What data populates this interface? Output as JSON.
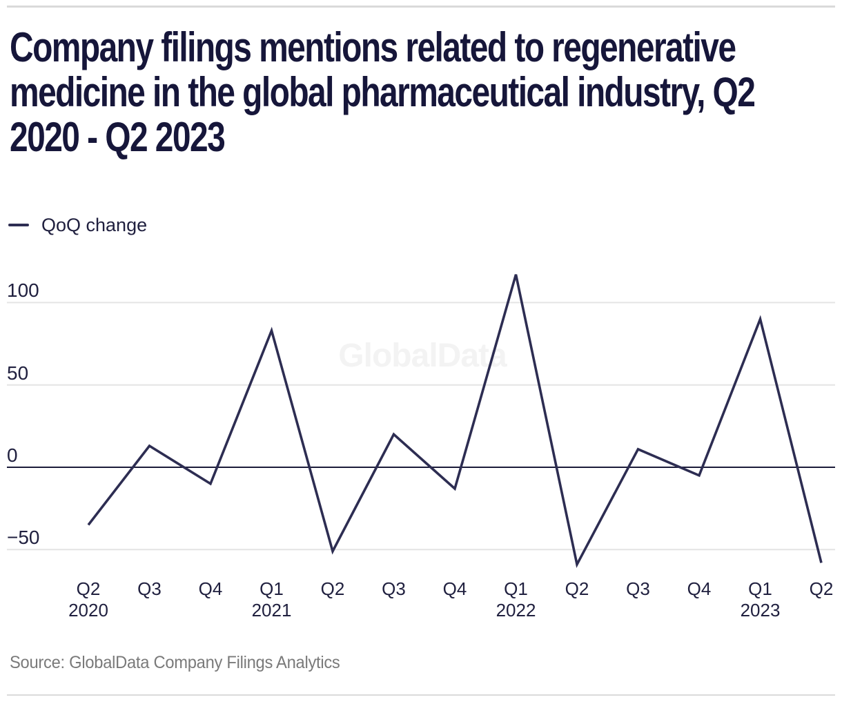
{
  "header": {
    "title": "Company filings mentions related to regenerative medicine in the global pharmaceutical industry, Q2 2020 - Q2 2023",
    "title_lines": [
      "Company filings mentions related to regenerative",
      "medicine in the global pharmaceutical industry, Q2",
      "2020 - Q2 2023"
    ]
  },
  "legend": {
    "label": "QoQ change"
  },
  "watermark": {
    "text": "GlobalData"
  },
  "source": {
    "text": "Source: GlobalData Company Filings Analytics"
  },
  "colors": {
    "title": "#16163a",
    "line": "#2d2d52",
    "axis_text": "#20203f",
    "gridline": "#e4e4e4",
    "zero_line": "#1b1b38",
    "watermark": "#f3f3f3",
    "source_text": "#7a7a7a",
    "rule": "#dadada"
  },
  "chart_data": {
    "type": "line",
    "title": "Company filings mentions related to regenerative medicine in the global pharmaceutical industry, Q2 2020 - Q2 2023",
    "xlabel": "",
    "ylabel": "",
    "categories": [
      "Q2 2020",
      "Q3 2020",
      "Q4 2020",
      "Q1 2021",
      "Q2 2021",
      "Q3 2021",
      "Q4 2021",
      "Q1 2022",
      "Q2 2022",
      "Q3 2022",
      "Q4 2022",
      "Q1 2023",
      "Q2 2023"
    ],
    "x_tick_labels": [
      {
        "quarter": "Q2",
        "year": "2020"
      },
      {
        "quarter": "Q3"
      },
      {
        "quarter": "Q4"
      },
      {
        "quarter": "Q1",
        "year": "2021"
      },
      {
        "quarter": "Q2"
      },
      {
        "quarter": "Q3"
      },
      {
        "quarter": "Q4"
      },
      {
        "quarter": "Q1",
        "year": "2022"
      },
      {
        "quarter": "Q2"
      },
      {
        "quarter": "Q3"
      },
      {
        "quarter": "Q4"
      },
      {
        "quarter": "Q1",
        "year": "2023"
      },
      {
        "quarter": "Q2"
      }
    ],
    "series": [
      {
        "name": "QoQ change",
        "values": [
          -35,
          13,
          -10,
          83,
          -51,
          20,
          -13,
          117,
          -59,
          11,
          -5,
          90,
          -58
        ]
      }
    ],
    "yticks": [
      100,
      50,
      0,
      -50
    ],
    "ylim": [
      -70,
      125
    ],
    "grid": "horizontal",
    "legend_position": "top-left"
  }
}
